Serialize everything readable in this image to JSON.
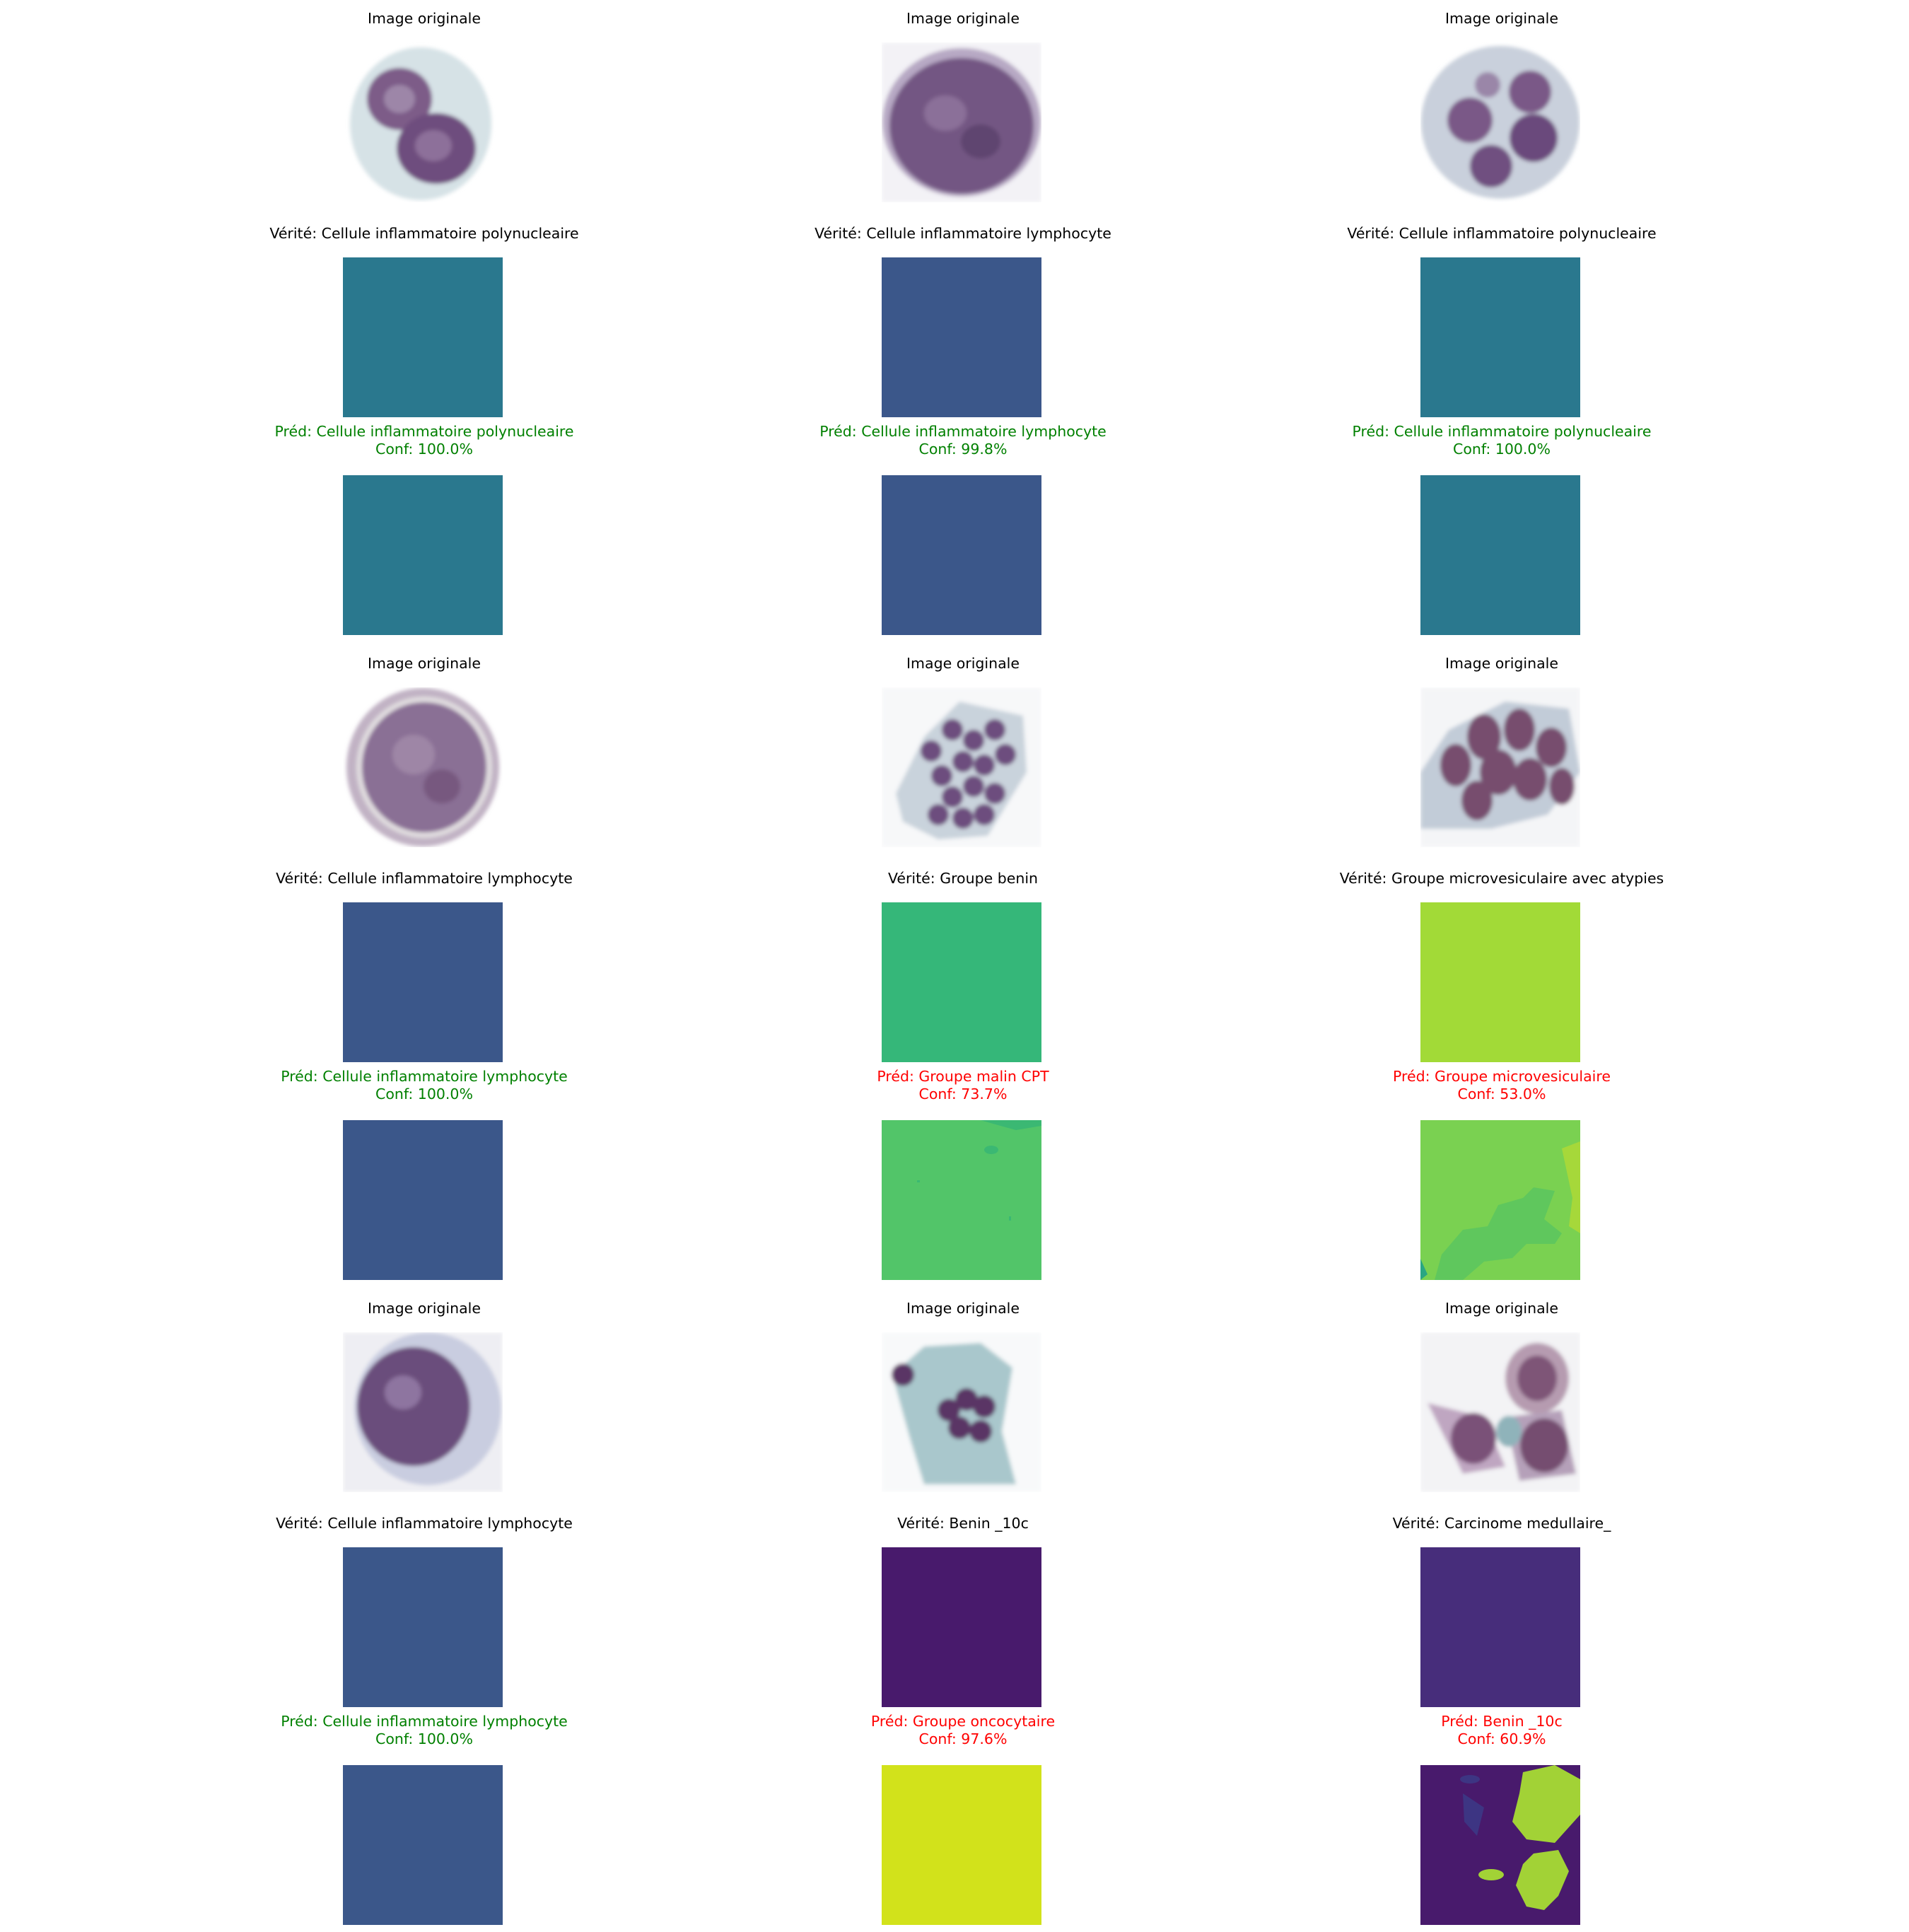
{
  "grid": [
    {
      "original_title": "Image originale",
      "truth_title": "Vérité: Cellule inflammatoire polynucleaire",
      "truth_color": "#2a788e",
      "pred_title": "Préd: Cellule inflammatoire polynucleaire",
      "pred_conf": "Conf: 100.0%",
      "pred_correct": true,
      "pred_color": "#2a788e",
      "cell_kind": "polynuclear"
    },
    {
      "original_title": "Image originale",
      "truth_title": "Vérité: Cellule inflammatoire lymphocyte",
      "truth_color": "#3b578a",
      "pred_title": "Préd: Cellule inflammatoire lymphocyte",
      "pred_conf": "Conf: 99.8%",
      "pred_correct": true,
      "pred_color": "#3b578a",
      "cell_kind": "lymphocyte-large"
    },
    {
      "original_title": "Image originale",
      "truth_title": "Vérité: Cellule inflammatoire polynucleaire",
      "truth_color": "#2a788e",
      "pred_title": "Préd: Cellule inflammatoire polynucleaire",
      "pred_conf": "Conf: 100.0%",
      "pred_correct": true,
      "pred_color": "#2a788e",
      "cell_kind": "polynuclear-multi"
    },
    {
      "original_title": "Image originale",
      "truth_title": "Vérité: Cellule inflammatoire lymphocyte",
      "truth_color": "#3b578a",
      "pred_title": "Préd: Cellule inflammatoire lymphocyte",
      "pred_conf": "Conf: 100.0%",
      "pred_correct": true,
      "pred_color": "#3b578a",
      "cell_kind": "lymphocyte-ring"
    },
    {
      "original_title": "Image originale",
      "truth_title": "Vérité: Groupe benin",
      "truth_color": "#35b779",
      "pred_title": "Préd: Groupe malin CPT",
      "pred_conf": "Conf: 73.7%",
      "pred_correct": false,
      "pred_color": "#52c569",
      "cell_kind": "cluster-dense"
    },
    {
      "original_title": "Image originale",
      "truth_title": "Vérité: Groupe microvesiculaire avec atypies",
      "truth_color": "#a2da37",
      "pred_title": "Préd: Groupe microvesiculaire",
      "pred_conf": "Conf: 53.0%",
      "pred_correct": false,
      "pred_color": "#7ad151",
      "cell_kind": "cluster-oval"
    },
    {
      "original_title": "Image originale",
      "truth_title": "Vérité: Cellule inflammatoire lymphocyte",
      "truth_color": "#3b578a",
      "pred_title": "Préd: Cellule inflammatoire lymphocyte",
      "pred_conf": "Conf: 100.0%",
      "pred_correct": true,
      "pred_color": "#3b578a",
      "cell_kind": "lymphocyte-small"
    },
    {
      "original_title": "Image originale",
      "truth_title": "Vérité: Benin _10c",
      "truth_color": "#481a6c",
      "pred_title": "Préd: Groupe oncocytaire",
      "pred_conf": "Conf: 97.6%",
      "pred_correct": false,
      "pred_color": "#d2e21b",
      "cell_kind": "cluster-sparse"
    },
    {
      "original_title": "Image originale",
      "truth_title": "Vérité: Carcinome medullaire_",
      "truth_color": "#472d7b",
      "pred_title": "Préd: Benin _10c",
      "pred_conf": "Conf: 60.9%",
      "pred_correct": false,
      "pred_color": "#481a6c",
      "cell_kind": "tadpole-cells"
    }
  ]
}
